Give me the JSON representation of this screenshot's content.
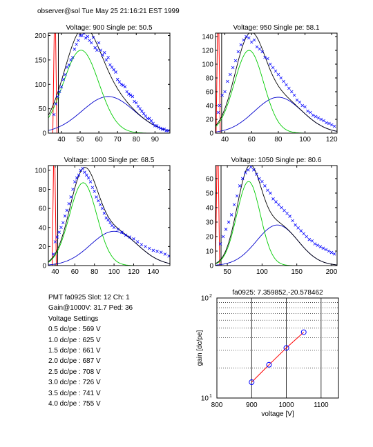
{
  "header": {
    "title": "observer@sol  Tue May 25 21:16:21 EST 1999"
  },
  "info": {
    "pmt_line": "PMT fa0925 Slot: 12 Ch: 1",
    "gain_line": "Gain@1000V: 31.7 Ped: 36",
    "settings_heading": "Voltage Settings",
    "settings": [
      "0.5 dc/pe : 569 V",
      "1.0 dc/pe : 625 V",
      "1.5 dc/pe : 661 V",
      "2.0 dc/pe : 687 V",
      "2.5 dc/pe : 708 V",
      "3.0 dc/pe : 726 V",
      "3.5 dc/pe : 741 V",
      "4.0 dc/pe : 755 V"
    ]
  },
  "colors": {
    "data": "#0000ff",
    "total_fit": "#000000",
    "single_pe_fit": "#00cc00",
    "second_fit": "#0000cc",
    "pedestal": "#ff0000",
    "gain_line": "#ff0000"
  },
  "chart_data": [
    {
      "type": "scatter",
      "title": "Voltage: 900 Single pe: 50.5",
      "xlim": [
        33,
        98
      ],
      "ylim": [
        0,
        205
      ],
      "xticks": [
        40,
        50,
        60,
        70,
        80,
        90
      ],
      "yticks": [
        0,
        50,
        100,
        150,
        200
      ],
      "pedestal_x": 36.5,
      "fits": {
        "single_pe": {
          "mean": 50.5,
          "sigma": 9.5,
          "amp": 170
        },
        "second_pe": {
          "mean": 65,
          "sigma": 14,
          "amp": 75
        }
      },
      "points": [
        [
          36,
          38
        ],
        [
          37,
          60
        ],
        [
          38,
          75
        ],
        [
          39,
          85
        ],
        [
          40,
          95
        ],
        [
          41,
          110
        ],
        [
          42,
          120
        ],
        [
          43,
          135
        ],
        [
          44,
          140
        ],
        [
          45,
          150
        ],
        [
          46,
          155
        ],
        [
          47,
          172
        ],
        [
          48,
          182
        ],
        [
          49,
          190
        ],
        [
          50,
          200
        ],
        [
          51,
          200
        ],
        [
          52,
          205
        ],
        [
          53,
          195
        ],
        [
          54,
          198
        ],
        [
          55,
          190
        ],
        [
          56,
          185
        ],
        [
          57,
          196
        ],
        [
          58,
          175
        ],
        [
          59,
          170
        ],
        [
          60,
          185
        ],
        [
          61,
          170
        ],
        [
          62,
          160
        ],
        [
          63,
          165
        ],
        [
          64,
          150
        ],
        [
          65,
          155
        ],
        [
          66,
          140
        ],
        [
          67,
          135
        ],
        [
          68,
          130
        ],
        [
          69,
          125
        ],
        [
          70,
          110
        ],
        [
          71,
          105
        ],
        [
          72,
          100
        ],
        [
          73,
          98
        ],
        [
          74,
          95
        ],
        [
          75,
          85
        ],
        [
          76,
          80
        ],
        [
          77,
          78
        ],
        [
          78,
          75
        ],
        [
          79,
          65
        ],
        [
          80,
          62
        ],
        [
          81,
          55
        ],
        [
          82,
          50
        ],
        [
          83,
          45
        ],
        [
          84,
          40
        ],
        [
          85,
          35
        ],
        [
          86,
          30
        ],
        [
          87,
          30
        ],
        [
          88,
          25
        ],
        [
          89,
          20
        ],
        [
          90,
          15
        ],
        [
          91,
          15
        ],
        [
          92,
          12
        ],
        [
          93,
          10
        ],
        [
          94,
          8
        ],
        [
          95,
          8
        ],
        [
          96,
          5
        ],
        [
          97,
          5
        ]
      ]
    },
    {
      "type": "scatter",
      "title": "Voltage: 950 Single pe: 58.1",
      "xlim": [
        33,
        124
      ],
      "ylim": [
        0,
        145
      ],
      "xticks": [
        40,
        60,
        80,
        100,
        120
      ],
      "yticks": [
        0,
        20,
        40,
        60,
        80,
        100,
        120,
        140
      ],
      "pedestal_x": 35,
      "fits": {
        "single_pe": {
          "mean": 58.1,
          "sigma": 11,
          "amp": 120
        },
        "second_pe": {
          "mean": 80,
          "sigma": 18,
          "amp": 52
        }
      },
      "points": [
        [
          35,
          30
        ],
        [
          36,
          40
        ],
        [
          38,
          55
        ],
        [
          40,
          60
        ],
        [
          42,
          75
        ],
        [
          44,
          85
        ],
        [
          46,
          95
        ],
        [
          48,
          105
        ],
        [
          50,
          118
        ],
        [
          52,
          128
        ],
        [
          54,
          135
        ],
        [
          56,
          140
        ],
        [
          58,
          138
        ],
        [
          60,
          132
        ],
        [
          62,
          135
        ],
        [
          64,
          125
        ],
        [
          66,
          122
        ],
        [
          68,
          118
        ],
        [
          70,
          110
        ],
        [
          72,
          108
        ],
        [
          74,
          100
        ],
        [
          76,
          95
        ],
        [
          78,
          90
        ],
        [
          80,
          85
        ],
        [
          82,
          80
        ],
        [
          84,
          75
        ],
        [
          86,
          70
        ],
        [
          88,
          65
        ],
        [
          90,
          60
        ],
        [
          92,
          55
        ],
        [
          94,
          48
        ],
        [
          96,
          45
        ],
        [
          98,
          40
        ],
        [
          100,
          38
        ],
        [
          102,
          32
        ],
        [
          104,
          30
        ],
        [
          106,
          26
        ],
        [
          108,
          24
        ],
        [
          110,
          22
        ],
        [
          112,
          20
        ],
        [
          114,
          18
        ],
        [
          116,
          15
        ],
        [
          118,
          14
        ],
        [
          120,
          12
        ],
        [
          122,
          10
        ]
      ]
    },
    {
      "type": "scatter",
      "title": "Voltage: 1000 Single pe: 68.5",
      "xlim": [
        33,
        157
      ],
      "ylim": [
        0,
        105
      ],
      "xticks": [
        40,
        60,
        80,
        100,
        120,
        140
      ],
      "yticks": [
        0,
        20,
        40,
        60,
        80,
        100
      ],
      "pedestal_x": 39,
      "fits": {
        "single_pe": {
          "mean": 68.5,
          "sigma": 14,
          "amp": 87
        },
        "second_pe": {
          "mean": 100,
          "sigma": 24,
          "amp": 36
        }
      },
      "points": [
        [
          38,
          12
        ],
        [
          40,
          25
        ],
        [
          42,
          30
        ],
        [
          44,
          35
        ],
        [
          46,
          40
        ],
        [
          48,
          45
        ],
        [
          50,
          52
        ],
        [
          52,
          58
        ],
        [
          54,
          65
        ],
        [
          56,
          72
        ],
        [
          58,
          80
        ],
        [
          60,
          88
        ],
        [
          62,
          92
        ],
        [
          64,
          95
        ],
        [
          66,
          100
        ],
        [
          68,
          102
        ],
        [
          70,
          98
        ],
        [
          72,
          95
        ],
        [
          74,
          92
        ],
        [
          76,
          88
        ],
        [
          78,
          82
        ],
        [
          80,
          78
        ],
        [
          82,
          72
        ],
        [
          84,
          68
        ],
        [
          86,
          64
        ],
        [
          88,
          60
        ],
        [
          90,
          55
        ],
        [
          92,
          50
        ],
        [
          94,
          48
        ],
        [
          96,
          45
        ],
        [
          98,
          42
        ],
        [
          100,
          40
        ],
        [
          104,
          38
        ],
        [
          108,
          35
        ],
        [
          112,
          32
        ],
        [
          116,
          30
        ],
        [
          120,
          28
        ],
        [
          124,
          25
        ],
        [
          128,
          22
        ],
        [
          132,
          20
        ],
        [
          136,
          18
        ],
        [
          140,
          16
        ],
        [
          144,
          15
        ],
        [
          148,
          14
        ],
        [
          152,
          12
        ],
        [
          156,
          10
        ]
      ]
    },
    {
      "type": "scatter",
      "title": "Voltage: 1050 Single pe: 80.6",
      "xlim": [
        33,
        208
      ],
      "ylim": [
        0,
        69
      ],
      "xticks": [
        50,
        100,
        150,
        200
      ],
      "yticks": [
        0,
        10,
        20,
        30,
        40,
        50,
        60
      ],
      "pedestal_x": 36,
      "fits": {
        "single_pe": {
          "mean": 80.6,
          "sigma": 17,
          "amp": 58
        },
        "second_pe": {
          "mean": 122,
          "sigma": 30,
          "amp": 28
        }
      },
      "points": [
        [
          40,
          15
        ],
        [
          44,
          20
        ],
        [
          48,
          25
        ],
        [
          52,
          30
        ],
        [
          56,
          35
        ],
        [
          60,
          42
        ],
        [
          64,
          48
        ],
        [
          68,
          55
        ],
        [
          72,
          60
        ],
        [
          76,
          64
        ],
        [
          80,
          66
        ],
        [
          84,
          68
        ],
        [
          88,
          66
        ],
        [
          92,
          63
        ],
        [
          96,
          60
        ],
        [
          100,
          58
        ],
        [
          104,
          55
        ],
        [
          108,
          52
        ],
        [
          112,
          50
        ],
        [
          116,
          46
        ],
        [
          120,
          44
        ],
        [
          124,
          42
        ],
        [
          128,
          40
        ],
        [
          132,
          38
        ],
        [
          136,
          36
        ],
        [
          140,
          34
        ],
        [
          144,
          31
        ],
        [
          148,
          28
        ],
        [
          152,
          26
        ],
        [
          156,
          24
        ],
        [
          160,
          22
        ],
        [
          164,
          20
        ],
        [
          168,
          18
        ],
        [
          172,
          17
        ],
        [
          176,
          15
        ],
        [
          180,
          14
        ],
        [
          184,
          13
        ],
        [
          188,
          12
        ],
        [
          192,
          11
        ],
        [
          196,
          10
        ],
        [
          200,
          9
        ],
        [
          204,
          8
        ]
      ]
    },
    {
      "type": "line",
      "title": "fa0925: 7.359852,-20.578462",
      "xlabel": "voltage [V]",
      "ylabel": "gain [dc/pe]",
      "xlim": [
        800,
        1150
      ],
      "ylim": [
        10,
        100
      ],
      "yscale": "log",
      "xticks": [
        800,
        900,
        1000,
        1100
      ],
      "yticklabels": [
        "10^1",
        "10^2"
      ],
      "grid": true,
      "x": [
        900,
        950,
        1000,
        1050
      ],
      "y": [
        14.4,
        21.5,
        31.7,
        45.5
      ]
    }
  ]
}
